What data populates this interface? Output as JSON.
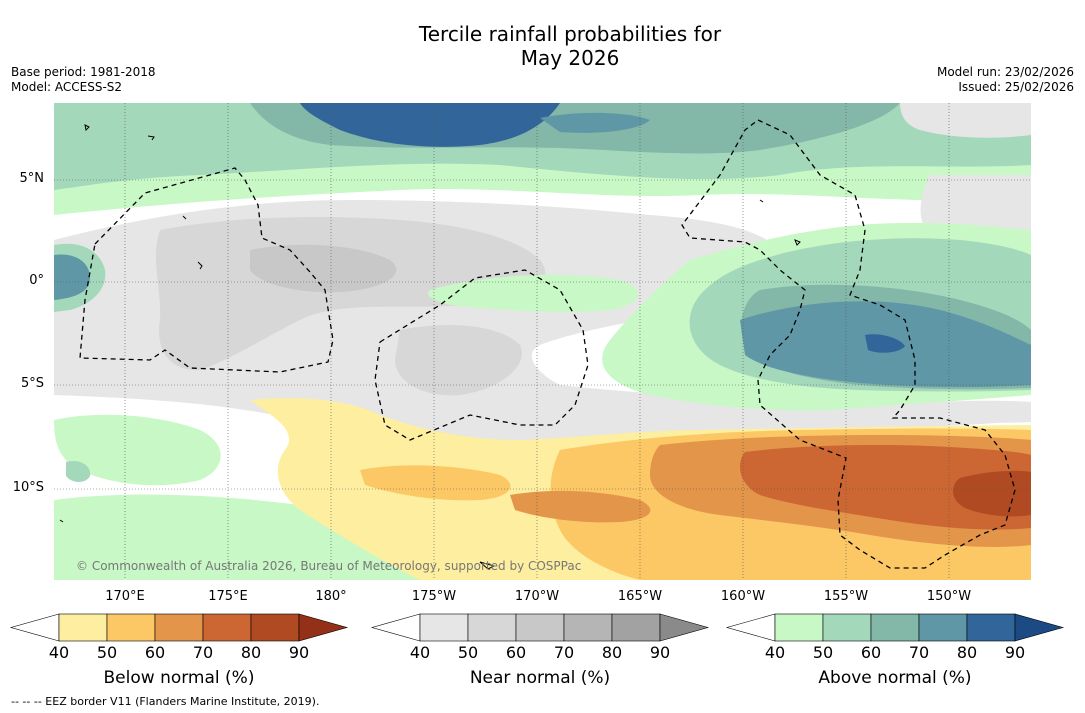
{
  "title": {
    "line1": "Tercile rainfall probabilities for",
    "line2": "May 2026"
  },
  "meta": {
    "base_period": "Base period: 1981-2018",
    "model": "Model: ACCESS-S2",
    "model_run": "Model run: 23/02/2026",
    "issued": "Issued: 25/02/2026"
  },
  "map": {
    "lon_labels": [
      "170°E",
      "175°E",
      "180°",
      "175°W",
      "170°W",
      "165°W",
      "160°W",
      "155°W",
      "150°W"
    ],
    "lat_labels": [
      "5°N",
      "0°",
      "5°S",
      "10°S"
    ],
    "credit": "© Commonwealth of Australia 2026, Bureau of Meteorology, supported by COSPPac"
  },
  "colorbars": [
    {
      "label": "Below normal (%)",
      "ticks": [
        "40",
        "50",
        "60",
        "70",
        "80",
        "90"
      ],
      "colors": [
        "#fdeea0",
        "#fcc865",
        "#e3954a",
        "#cc6632",
        "#b04a23",
        "#953018"
      ]
    },
    {
      "label": "Near normal (%)",
      "ticks": [
        "40",
        "50",
        "60",
        "70",
        "80",
        "90"
      ],
      "colors": [
        "#e6e6e6",
        "#d7d7d7",
        "#c8c8c8",
        "#b5b5b5",
        "#a2a2a2",
        "#8a8a8a"
      ]
    },
    {
      "label": "Above normal (%)",
      "ticks": [
        "40",
        "50",
        "60",
        "70",
        "80",
        "90"
      ],
      "colors": [
        "#c8f8c6",
        "#a3d8bb",
        "#83b7a8",
        "#5f97a6",
        "#32669a",
        "#1b4a85"
      ]
    }
  ],
  "eez_note": "-- -- -- EEZ border V11 (Flanders Marine Institute, 2019)."
}
